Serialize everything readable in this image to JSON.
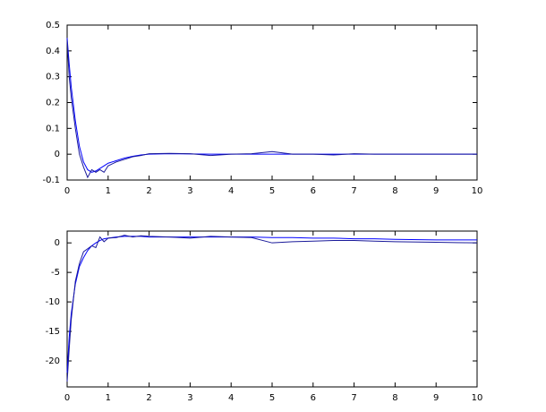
{
  "chart_data": [
    {
      "type": "line",
      "x": [
        0,
        0.05,
        0.1,
        0.2,
        0.3,
        0.4,
        0.5,
        0.6,
        0.7,
        0.8,
        0.9,
        1,
        1.2,
        1.4,
        1.6,
        1.8,
        2,
        2.5,
        3,
        3.5,
        4,
        4.5,
        5,
        5.5,
        6,
        6.5,
        7,
        7.5,
        8,
        9,
        10
      ],
      "series": [
        {
          "color": "#0000ff",
          "values": [
            0.45,
            0.35,
            0.26,
            0.13,
            0.03,
            -0.03,
            -0.06,
            -0.07,
            -0.065,
            -0.055,
            -0.045,
            -0.035,
            -0.025,
            -0.015,
            -0.008,
            -0.003,
            0,
            0.002,
            0.001,
            0,
            0,
            0,
            0,
            0,
            0,
            0,
            0,
            0,
            0,
            0,
            0
          ]
        },
        {
          "color": "#1a1a9a",
          "values": [
            0.44,
            0.3,
            0.22,
            0.1,
            0.0,
            -0.05,
            -0.09,
            -0.06,
            -0.07,
            -0.06,
            -0.07,
            -0.045,
            -0.03,
            -0.02,
            -0.01,
            -0.005,
            0.002,
            0.003,
            0.002,
            -0.005,
            0.0,
            0.002,
            0.01,
            0.0,
            0.0,
            -0.003,
            0.002,
            0.0,
            0,
            0,
            0
          ]
        }
      ],
      "xlim": [
        0,
        10
      ],
      "xticks": [
        0,
        1,
        2,
        3,
        4,
        5,
        6,
        7,
        8,
        9,
        10
      ],
      "ylim": [
        -0.1,
        0.5
      ],
      "yticks": [
        -0.1,
        0,
        0.1,
        0.2,
        0.3,
        0.4,
        0.5
      ]
    },
    {
      "type": "line",
      "x": [
        0,
        0.05,
        0.1,
        0.2,
        0.3,
        0.4,
        0.5,
        0.6,
        0.7,
        0.8,
        0.9,
        1,
        1.2,
        1.4,
        1.6,
        1.8,
        2,
        2.5,
        3,
        3.5,
        4,
        4.5,
        5,
        5.5,
        6,
        6.5,
        7,
        7.5,
        8,
        9,
        10
      ],
      "series": [
        {
          "color": "#0000ff",
          "values": [
            -22,
            -16,
            -12,
            -7,
            -4,
            -2.5,
            -1.3,
            -0.5,
            0,
            0.4,
            0.7,
            0.8,
            1.0,
            1.1,
            1.1,
            1.1,
            1.0,
            1.0,
            1.0,
            1.0,
            1.0,
            1.0,
            0.9,
            0.9,
            0.8,
            0.8,
            0.7,
            0.7,
            0.6,
            0.5,
            0.5
          ]
        },
        {
          "color": "#1a1a9a",
          "values": [
            -23.5,
            -18,
            -13,
            -6.5,
            -3.5,
            -1.5,
            -1,
            -0.5,
            -0.8,
            1,
            0.2,
            0.8,
            0.9,
            1.3,
            1.0,
            1.2,
            1.1,
            1.0,
            0.8,
            1.1,
            1.0,
            0.9,
            0.0,
            0.2,
            0.3,
            0.4,
            0.4,
            0.3,
            0.2,
            0.1,
            0
          ]
        }
      ],
      "xlim": [
        0,
        10
      ],
      "xticks": [
        0,
        1,
        2,
        3,
        4,
        5,
        6,
        7,
        8,
        9,
        10
      ],
      "ylim": [
        -24.4,
        2
      ],
      "yticks": [
        -20,
        -15,
        -10,
        -5,
        0
      ]
    }
  ]
}
